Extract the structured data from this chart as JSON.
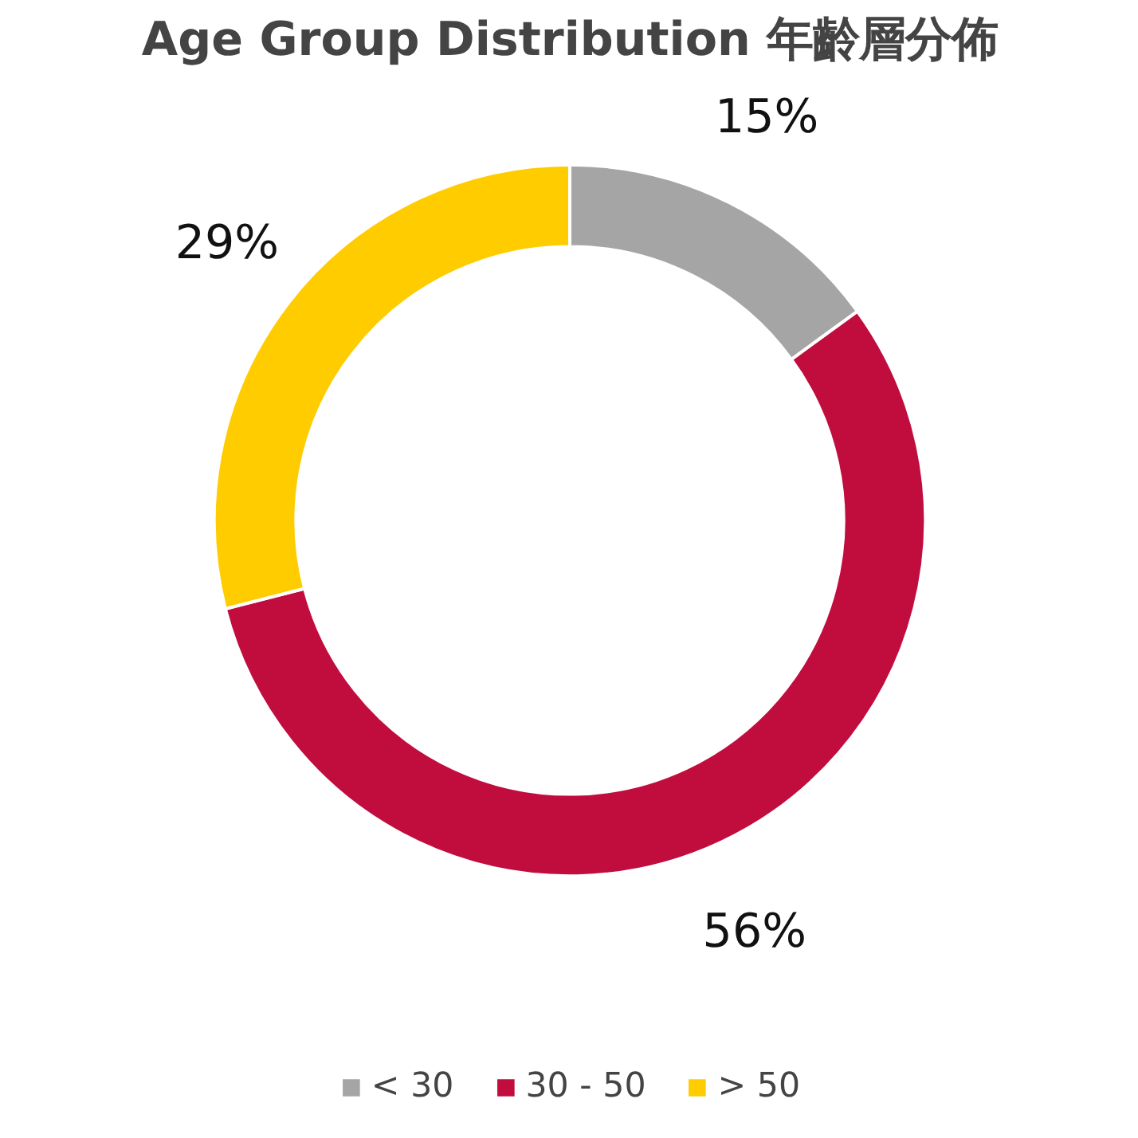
{
  "chart_data": {
    "type": "donut",
    "title": "Age Group Distribution 年齡層分佈",
    "categories": [
      "< 30",
      "30 - 50",
      "> 50"
    ],
    "values": [
      15,
      56,
      29
    ],
    "value_labels": [
      "15%",
      "56%",
      "29%"
    ],
    "colors": [
      "#a5a5a5",
      "#c00d3e",
      "#ffcc00"
    ],
    "legend": "bottom"
  }
}
